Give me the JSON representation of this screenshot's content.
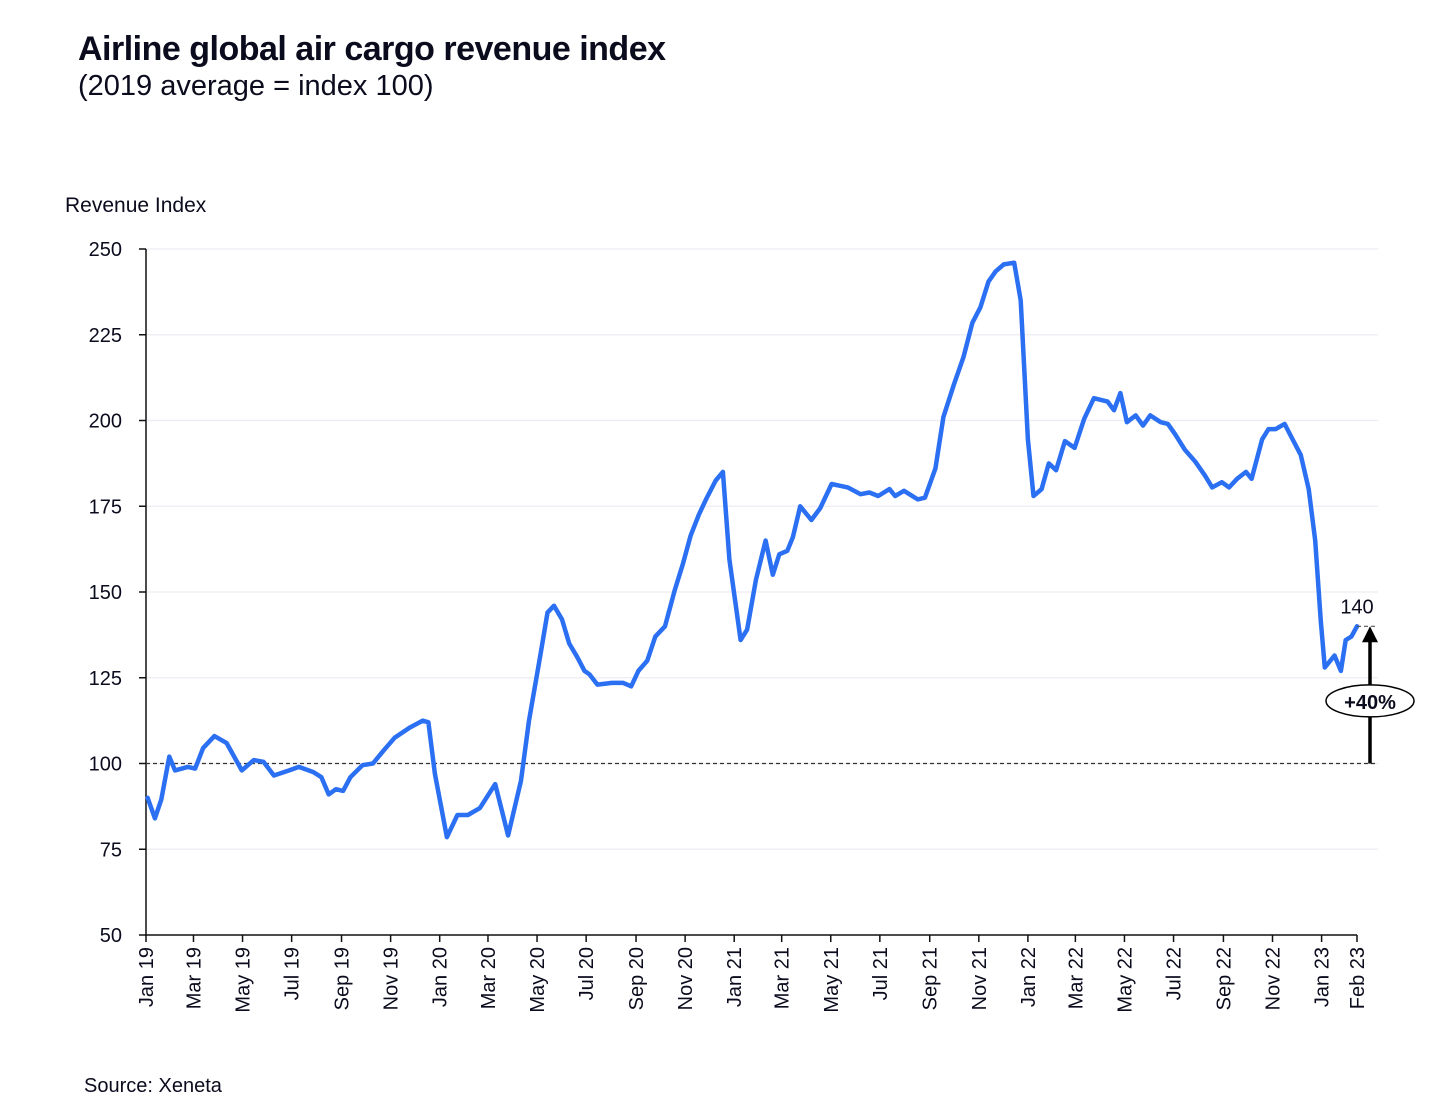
{
  "chart_data": {
    "type": "line",
    "title": "Airline global air cargo revenue index",
    "subtitle": "(2019 average = index 100)",
    "ylabel": "Revenue Index",
    "xlabel": "",
    "source": "Source: Xeneta",
    "ylim": [
      50,
      250
    ],
    "yticks": [
      50,
      75,
      100,
      125,
      150,
      175,
      200,
      225,
      250
    ],
    "xticks": [
      {
        "label": "Jan 19",
        "date": "2019-01-01"
      },
      {
        "label": "Mar 19",
        "date": "2019-03-01"
      },
      {
        "label": "May 19",
        "date": "2019-05-01"
      },
      {
        "label": "Jul 19",
        "date": "2019-07-01"
      },
      {
        "label": "Sep 19",
        "date": "2019-09-01"
      },
      {
        "label": "Nov 19",
        "date": "2019-11-01"
      },
      {
        "label": "Jan 20",
        "date": "2020-01-01"
      },
      {
        "label": "Mar 20",
        "date": "2020-03-01"
      },
      {
        "label": "May 20",
        "date": "2020-05-01"
      },
      {
        "label": "Jul 20",
        "date": "2020-07-01"
      },
      {
        "label": "Sep 20",
        "date": "2020-09-01"
      },
      {
        "label": "Nov 20",
        "date": "2020-11-01"
      },
      {
        "label": "Jan 21",
        "date": "2021-01-01"
      },
      {
        "label": "Mar 21",
        "date": "2021-03-01"
      },
      {
        "label": "May 21",
        "date": "2021-05-01"
      },
      {
        "label": "Jul 21",
        "date": "2021-07-01"
      },
      {
        "label": "Sep 21",
        "date": "2021-09-01"
      },
      {
        "label": "Nov 21",
        "date": "2021-11-01"
      },
      {
        "label": "Jan 22",
        "date": "2022-01-01"
      },
      {
        "label": "Mar 22",
        "date": "2022-03-01"
      },
      {
        "label": "May 22",
        "date": "2022-05-01"
      },
      {
        "label": "Jul 22",
        "date": "2022-07-01"
      },
      {
        "label": "Sep 22",
        "date": "2022-09-01"
      },
      {
        "label": "Nov 22",
        "date": "2022-11-01"
      },
      {
        "label": "Jan 23",
        "date": "2023-01-01"
      },
      {
        "label": "Feb 23",
        "date": "2023-02-14"
      }
    ],
    "grid": "horizontal",
    "line_color": "#2b6ff2",
    "reference_line": {
      "value": 100,
      "style": "dashed"
    },
    "annotation": {
      "value_label": "140",
      "change_label": "+40%",
      "from": 100,
      "to": 140
    },
    "series": [
      {
        "points": [
          [
            "2019-01-03",
            90
          ],
          [
            "2019-01-12",
            84
          ],
          [
            "2019-01-20",
            89.5
          ],
          [
            "2019-01-30",
            102
          ],
          [
            "2019-02-06",
            98
          ],
          [
            "2019-02-22",
            99
          ],
          [
            "2019-03-03",
            98.5
          ],
          [
            "2019-03-13",
            104.5
          ],
          [
            "2019-03-27",
            108
          ],
          [
            "2019-04-11",
            106
          ],
          [
            "2019-04-30",
            98
          ],
          [
            "2019-05-15",
            101
          ],
          [
            "2019-05-27",
            100.5
          ],
          [
            "2019-06-09",
            96.5
          ],
          [
            "2019-06-28",
            98
          ],
          [
            "2019-07-10",
            99
          ],
          [
            "2019-07-28",
            97.5
          ],
          [
            "2019-08-07",
            96
          ],
          [
            "2019-08-16",
            91
          ],
          [
            "2019-08-25",
            92.5
          ],
          [
            "2019-09-03",
            92
          ],
          [
            "2019-09-12",
            96
          ],
          [
            "2019-09-27",
            99.5
          ],
          [
            "2019-10-10",
            100
          ],
          [
            "2019-10-24",
            104
          ],
          [
            "2019-11-06",
            107.5
          ],
          [
            "2019-11-25",
            110.5
          ],
          [
            "2019-12-11",
            112.5
          ],
          [
            "2019-12-18",
            112
          ],
          [
            "2019-12-26",
            97
          ],
          [
            "2020-01-10",
            78.5
          ],
          [
            "2020-01-23",
            85
          ],
          [
            "2020-02-05",
            85
          ],
          [
            "2020-02-20",
            87
          ],
          [
            "2020-03-10",
            94
          ],
          [
            "2020-03-26",
            79
          ],
          [
            "2020-04-11",
            95
          ],
          [
            "2020-04-21",
            112.5
          ],
          [
            "2020-05-05",
            131.5
          ],
          [
            "2020-05-14",
            144
          ],
          [
            "2020-05-22",
            146
          ],
          [
            "2020-06-01",
            142
          ],
          [
            "2020-06-10",
            135
          ],
          [
            "2020-06-20",
            131
          ],
          [
            "2020-06-29",
            127
          ],
          [
            "2020-07-05",
            126
          ],
          [
            "2020-07-15",
            123
          ],
          [
            "2020-08-02",
            123.5
          ],
          [
            "2020-08-16",
            123.5
          ],
          [
            "2020-08-26",
            122.5
          ],
          [
            "2020-09-04",
            127
          ],
          [
            "2020-09-15",
            130
          ],
          [
            "2020-09-25",
            137
          ],
          [
            "2020-10-07",
            140
          ],
          [
            "2020-10-19",
            150.5
          ],
          [
            "2020-10-29",
            158
          ],
          [
            "2020-11-08",
            166.5
          ],
          [
            "2020-11-18",
            172.5
          ],
          [
            "2020-11-27",
            177
          ],
          [
            "2020-12-09",
            182.5
          ],
          [
            "2020-12-18",
            185
          ],
          [
            "2020-12-26",
            159.5
          ],
          [
            "2021-01-09",
            136
          ],
          [
            "2021-01-17",
            139
          ],
          [
            "2021-01-28",
            153.5
          ],
          [
            "2021-02-09",
            165
          ],
          [
            "2021-02-18",
            155
          ],
          [
            "2021-02-26",
            161
          ],
          [
            "2021-03-08",
            162
          ],
          [
            "2021-03-15",
            166
          ],
          [
            "2021-03-24",
            175
          ],
          [
            "2021-04-07",
            171
          ],
          [
            "2021-04-18",
            174.5
          ],
          [
            "2021-05-02",
            181.5
          ],
          [
            "2021-05-12",
            181
          ],
          [
            "2021-05-22",
            180.5
          ],
          [
            "2021-06-07",
            178.5
          ],
          [
            "2021-06-18",
            179
          ],
          [
            "2021-06-29",
            178
          ],
          [
            "2021-07-13",
            180
          ],
          [
            "2021-07-20",
            178
          ],
          [
            "2021-07-31",
            179.5
          ],
          [
            "2021-08-17",
            177
          ],
          [
            "2021-08-26",
            177.5
          ],
          [
            "2021-09-08",
            186
          ],
          [
            "2021-09-18",
            201
          ],
          [
            "2021-10-01",
            210.5
          ],
          [
            "2021-10-13",
            218.5
          ],
          [
            "2021-10-24",
            228.5
          ],
          [
            "2021-11-03",
            233
          ],
          [
            "2021-11-13",
            240.5
          ],
          [
            "2021-11-22",
            243.5
          ],
          [
            "2021-12-02",
            245.5
          ],
          [
            "2021-12-15",
            246
          ],
          [
            "2021-12-23",
            235
          ],
          [
            "2022-01-01",
            194.5
          ],
          [
            "2022-01-08",
            178
          ],
          [
            "2022-01-18",
            180
          ],
          [
            "2022-01-27",
            187.5
          ],
          [
            "2022-02-05",
            185.5
          ],
          [
            "2022-02-16",
            194
          ],
          [
            "2022-02-28",
            192
          ],
          [
            "2022-03-12",
            200.5
          ],
          [
            "2022-03-24",
            206.5
          ],
          [
            "2022-04-10",
            205.5
          ],
          [
            "2022-04-18",
            203
          ],
          [
            "2022-04-26",
            208
          ],
          [
            "2022-05-04",
            199.5
          ],
          [
            "2022-05-15",
            201.5
          ],
          [
            "2022-05-24",
            198.5
          ],
          [
            "2022-06-02",
            201.5
          ],
          [
            "2022-06-15",
            199.5
          ],
          [
            "2022-06-24",
            199
          ],
          [
            "2022-07-03",
            196
          ],
          [
            "2022-07-15",
            191.5
          ],
          [
            "2022-07-28",
            188
          ],
          [
            "2022-08-09",
            184
          ],
          [
            "2022-08-18",
            180.5
          ],
          [
            "2022-08-30",
            182
          ],
          [
            "2022-09-08",
            180.5
          ],
          [
            "2022-09-18",
            183
          ],
          [
            "2022-09-29",
            185
          ],
          [
            "2022-10-06",
            183
          ],
          [
            "2022-10-19",
            194.5
          ],
          [
            "2022-10-27",
            197.5
          ],
          [
            "2022-11-05",
            197.5
          ],
          [
            "2022-11-16",
            199
          ],
          [
            "2022-11-26",
            194.5
          ],
          [
            "2022-12-06",
            190
          ],
          [
            "2022-12-16",
            180
          ],
          [
            "2022-12-24",
            165
          ],
          [
            "2022-12-31",
            141.5
          ],
          [
            "2023-01-05",
            128
          ],
          [
            "2023-01-17",
            131.5
          ],
          [
            "2023-01-25",
            127
          ],
          [
            "2023-01-31",
            136
          ],
          [
            "2023-02-07",
            137
          ],
          [
            "2023-02-14",
            140
          ]
        ]
      }
    ]
  }
}
